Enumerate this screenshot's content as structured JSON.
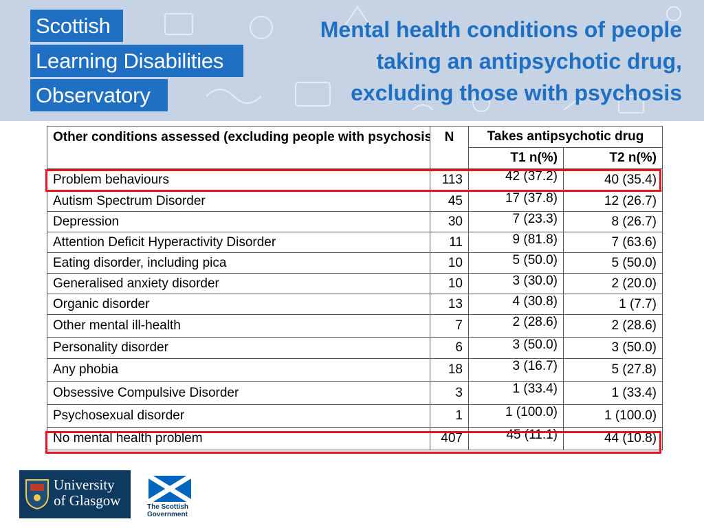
{
  "banner": {
    "logo_lines": [
      "Scottish",
      "Learning Disabilities",
      "Observatory"
    ],
    "title_lines": [
      "Mental health conditions of people",
      "taking an antipsychotic drug,",
      "excluding those with psychosis"
    ]
  },
  "table": {
    "headers": {
      "condition": "Other conditions assessed (excluding people with psychosis)",
      "n": "N",
      "takes": "Takes antipsychotic drug",
      "t1": "T1 n(%)",
      "t2": "T2 n(%)"
    },
    "rows": [
      {
        "condition": "Problem behaviours",
        "n": "113",
        "t1": "42 (37.2)",
        "t2": "40 (35.4)",
        "highlighted": true
      },
      {
        "condition": "Autism Spectrum Disorder",
        "n": "45",
        "t1": "17 (37.8)",
        "t2": "12 (26.7)"
      },
      {
        "condition": "Depression",
        "n": "30",
        "t1": "7 (23.3)",
        "t2": "8 (26.7)"
      },
      {
        "condition": "Attention Deficit Hyperactivity Disorder",
        "n": "11",
        "t1": "9 (81.8)",
        "t2": "7 (63.6)"
      },
      {
        "condition": "Eating disorder, including pica",
        "n": "10",
        "t1": "5 (50.0)",
        "t2": "5 (50.0)"
      },
      {
        "condition": "Generalised anxiety disorder",
        "n": "10",
        "t1": "3 (30.0)",
        "t2": "2 (20.0)"
      },
      {
        "condition": "Organic disorder",
        "n": "13",
        "t1": "4 (30.8)",
        "t2": "1 (7.7)"
      },
      {
        "condition": "Other mental ill-health",
        "n": "7",
        "t1": "2 (28.6)",
        "t2": "2 (28.6)"
      },
      {
        "condition": "Personality disorder",
        "n": "6",
        "t1": "3 (50.0)",
        "t2": "3 (50.0)"
      },
      {
        "condition": "Any phobia",
        "n": "18",
        "t1": "3 (16.7)",
        "t2": "5 (27.8)"
      },
      {
        "condition": "Obsessive Compulsive Disorder",
        "n": "3",
        "t1": "1 (33.4)",
        "t2": "1 (33.4)"
      },
      {
        "condition": "Psychosexual disorder",
        "n": "1",
        "t1": "1 (100.0)",
        "t2": "1 (100.0)"
      },
      {
        "condition": "No mental health problem",
        "n": "407",
        "t1": "45 (11.1)",
        "t2": "44 (10.8)",
        "highlighted": true
      }
    ]
  },
  "footer": {
    "uog_lines": [
      "University",
      "of Glasgow"
    ],
    "gov_lines": [
      "The Scottish",
      "Government"
    ]
  },
  "colors": {
    "banner_bg": "#c5d3e4",
    "brand_blue": "#1f6fc2",
    "highlight_red": "#e8131f",
    "uog_navy": "#0d3a5e"
  }
}
